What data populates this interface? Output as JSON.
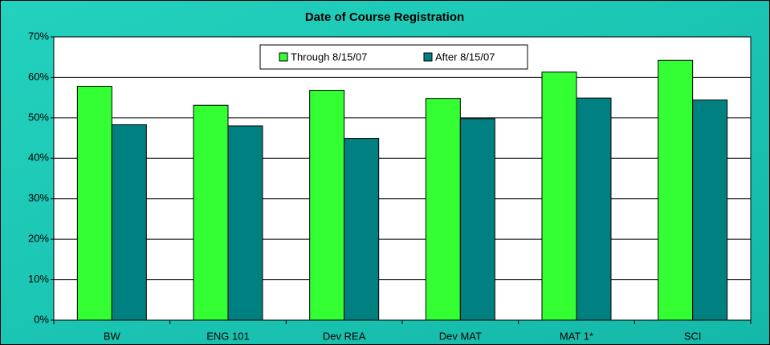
{
  "chart_data": {
    "type": "bar",
    "title": "Date of Course Registration",
    "categories": [
      "BW",
      "ENG 101",
      "Dev REA",
      "Dev MAT",
      "MAT 1*",
      "SCI"
    ],
    "series": [
      {
        "name": "Through 8/15/07",
        "color": "#33ff33",
        "values": [
          57.8,
          53.1,
          56.8,
          54.8,
          61.3,
          64.2
        ]
      },
      {
        "name": "After 8/15/07",
        "color": "#008080",
        "values": [
          48.3,
          48.0,
          44.9,
          49.8,
          54.9,
          54.4
        ]
      }
    ],
    "ylim": [
      0,
      70
    ],
    "yticks": [
      {
        "value": 0,
        "label": "0%"
      },
      {
        "value": 10,
        "label": "10%"
      },
      {
        "value": 20,
        "label": "20%"
      },
      {
        "value": 30,
        "label": "30%"
      },
      {
        "value": 40,
        "label": "40%"
      },
      {
        "value": 50,
        "label": "50%"
      },
      {
        "value": 60,
        "label": "60%"
      },
      {
        "value": 70,
        "label": "70%"
      }
    ],
    "grid": true,
    "legend": "top"
  }
}
